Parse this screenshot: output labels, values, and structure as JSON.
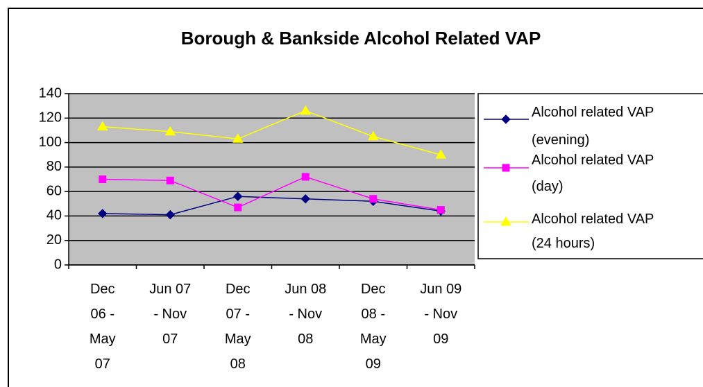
{
  "chart_data": {
    "type": "line",
    "title": "Borough & Bankside Alcohol Related VAP",
    "categories": [
      "Dec 06 - May 07",
      "Jun 07 - Nov 07",
      "Dec 07 - May 08",
      "Jun 08 - Nov 08",
      "Dec 08 - May 09",
      "Jun 09 - Nov 09"
    ],
    "series": [
      {
        "name": "Alcohol related VAP (evening)",
        "color": "#000080",
        "marker": "diamond",
        "values": [
          42,
          41,
          56,
          54,
          52,
          44
        ]
      },
      {
        "name": "Alcohol related VAP (day)",
        "color": "#ff00ff",
        "marker": "square",
        "values": [
          70,
          69,
          47,
          72,
          54,
          45
        ]
      },
      {
        "name": "Alcohol related VAP (24 hours)",
        "color": "#ffff00",
        "marker": "triangle",
        "values": [
          113,
          109,
          103,
          126,
          105,
          90
        ]
      }
    ],
    "ylim": [
      0,
      140
    ],
    "yticks": [
      0,
      20,
      40,
      60,
      80,
      100,
      120,
      140
    ],
    "grid": true,
    "legend": "right",
    "plot_background": "#c0c0c0"
  }
}
